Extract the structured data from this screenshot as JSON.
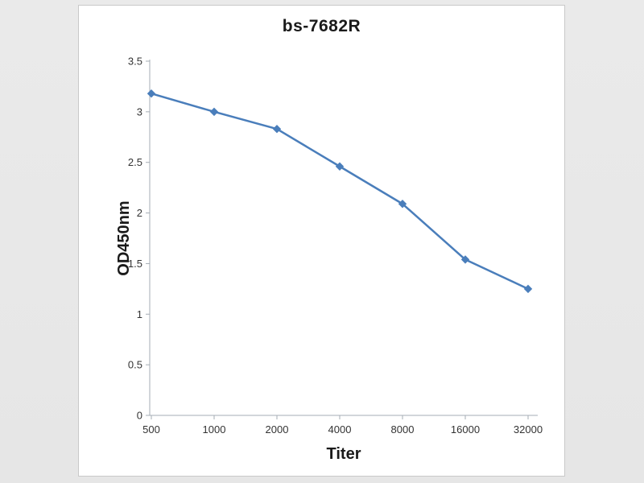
{
  "window": {
    "background_color": "#e8e8e8",
    "panel_background": "#ffffff",
    "panel_border_color": "#c9c9c9"
  },
  "chart_data": {
    "type": "line",
    "title": "bs-7682R",
    "xlabel": "Titer",
    "ylabel": "OD450nm",
    "categories": [
      "500",
      "1000",
      "2000",
      "4000",
      "8000",
      "16000",
      "32000"
    ],
    "series": [
      {
        "name": "bs-7682R",
        "color": "#4a7ebb",
        "values": [
          3.18,
          3.0,
          2.83,
          2.46,
          2.09,
          1.54,
          1.25
        ]
      }
    ],
    "ylim": [
      0,
      3.5
    ],
    "yticks": [
      0,
      0.5,
      1,
      1.5,
      2,
      2.5,
      3,
      3.5
    ],
    "grid": false,
    "legend": "none",
    "marker": "diamond",
    "axis_color": "#a6adb5",
    "tick_label_color": "#333333"
  }
}
